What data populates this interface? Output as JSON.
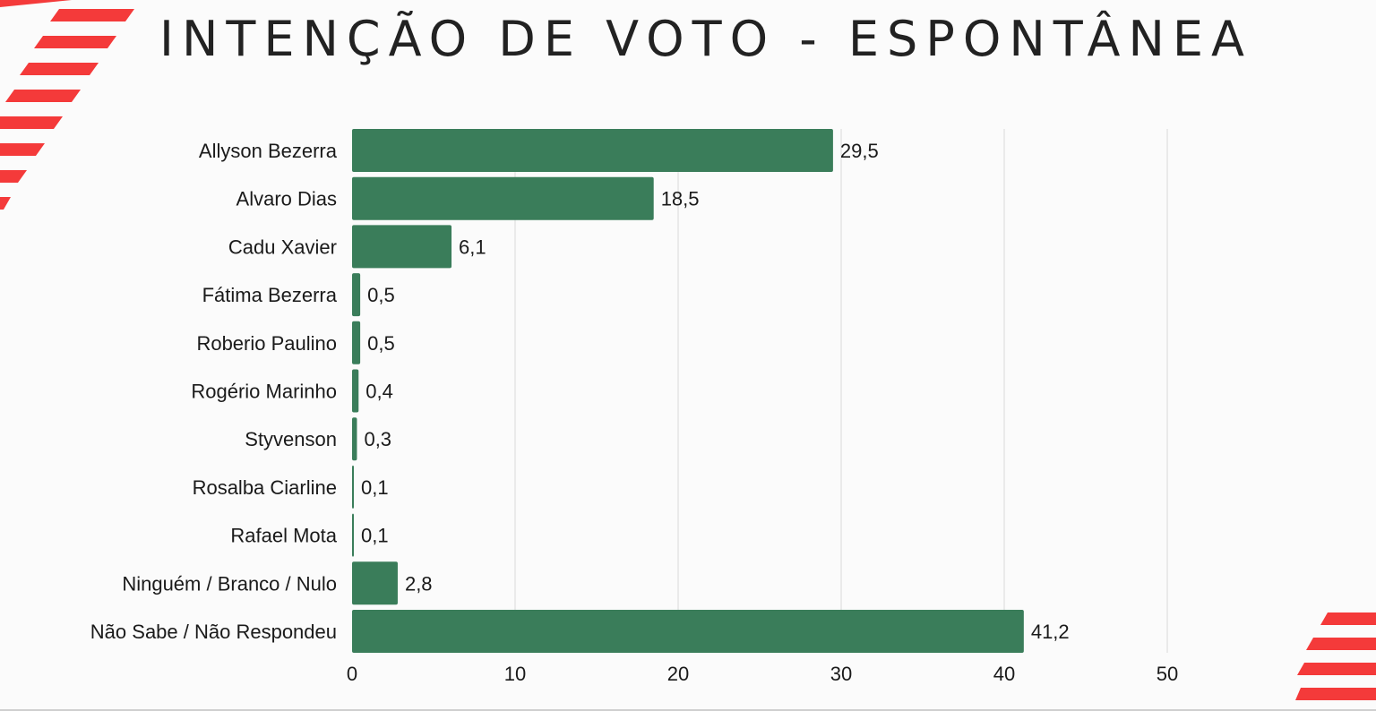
{
  "title": "INTENÇÃO DE VOTO - ESPONTÂNEA",
  "colors": {
    "bar": "#3a7d5a",
    "accent": "#f43a3a",
    "text": "#1a1a1a",
    "grid": "#d9d9d9"
  },
  "chart_data": {
    "type": "bar",
    "orientation": "horizontal",
    "categories": [
      "Allyson Bezerra",
      "Alvaro Dias",
      "Cadu Xavier",
      "Fátima Bezerra",
      "Roberio Paulino",
      "Rogério Marinho",
      "Styvenson",
      "Rosalba Ciarline",
      "Rafael Mota",
      "Ninguém / Branco / Nulo",
      "Não Sabe / Não Respondeu"
    ],
    "values": [
      29.5,
      18.5,
      6.1,
      0.5,
      0.5,
      0.4,
      0.3,
      0.1,
      0.1,
      2.8,
      41.2
    ],
    "value_labels": [
      "29,5",
      "18,5",
      "6,1",
      "0,5",
      "0,5",
      "0,4",
      "0,3",
      "0,1",
      "0,1",
      "2,8",
      "41,2"
    ],
    "xlim": [
      0,
      50
    ],
    "xticks": [
      "0",
      "10",
      "20",
      "30",
      "40",
      "50"
    ],
    "grid": "vertical",
    "title": "INTENÇÃO DE VOTO - ESPONTÂNEA"
  }
}
